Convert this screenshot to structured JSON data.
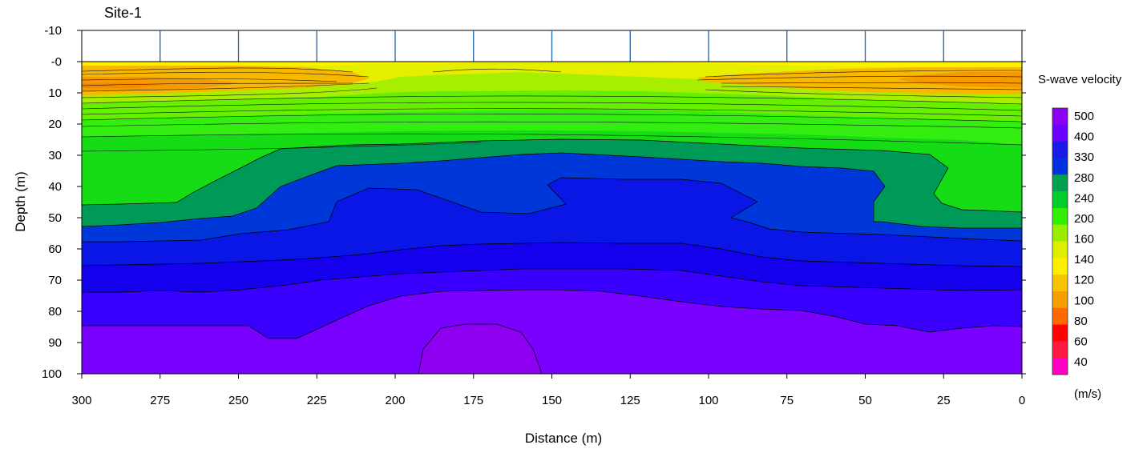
{
  "chart_data": {
    "type": "heatmap",
    "title": "Site-1",
    "xlabel": "Distance (m)",
    "ylabel": "Depth (m)",
    "xlim": [
      300,
      0
    ],
    "ylim": [
      -10,
      100
    ],
    "x_ticks": [
      300,
      275,
      250,
      225,
      200,
      175,
      150,
      125,
      100,
      75,
      50,
      25,
      0
    ],
    "y_ticks": [
      -10,
      0,
      10,
      20,
      30,
      40,
      50,
      60,
      70,
      80,
      90,
      100
    ],
    "y_tick_labels": [
      "-10",
      "-0",
      "10",
      "20",
      "30",
      "40",
      "50",
      "60",
      "70",
      "80",
      "90",
      "100"
    ],
    "sensor_positions": [
      275,
      250,
      225,
      200,
      175,
      150,
      125,
      100,
      75,
      50,
      25
    ],
    "legend": {
      "title": "S-wave velocity",
      "unit": "(m/s)",
      "labels": [
        500,
        400,
        330,
        280,
        240,
        200,
        160,
        140,
        120,
        100,
        80,
        60,
        40
      ],
      "colors": [
        "#8a00f0",
        "#6a00ff",
        "#1a1ae6",
        "#0033dd",
        "#00a050",
        "#00cc2a",
        "#33ee00",
        "#99ee00",
        "#ddee00",
        "#ffee00",
        "#f8c400",
        "#f5a000",
        "#ff6a00",
        "#ff0000",
        "#ff1a40",
        "#ff00c0"
      ]
    },
    "velocity_layers": [
      {
        "depth_top": 0,
        "depth_bottom": 5,
        "velocity": 120
      },
      {
        "depth_top": 5,
        "depth_bottom": 12,
        "velocity": 100
      },
      {
        "depth_top": 12,
        "depth_bottom": 20,
        "velocity": 180
      },
      {
        "depth_top": 20,
        "depth_bottom": 30,
        "velocity": 220
      },
      {
        "depth_top": 30,
        "depth_bottom": 45,
        "velocity": 240
      },
      {
        "depth_top": 45,
        "depth_bottom": 57,
        "velocity": 280
      },
      {
        "depth_top": 57,
        "depth_bottom": 65,
        "velocity": 330
      },
      {
        "depth_top": 65,
        "depth_bottom": 73,
        "velocity": 360
      },
      {
        "depth_top": 73,
        "depth_bottom": 84,
        "velocity": 400
      },
      {
        "depth_top": 84,
        "depth_bottom": 100,
        "velocity": 450
      }
    ]
  }
}
